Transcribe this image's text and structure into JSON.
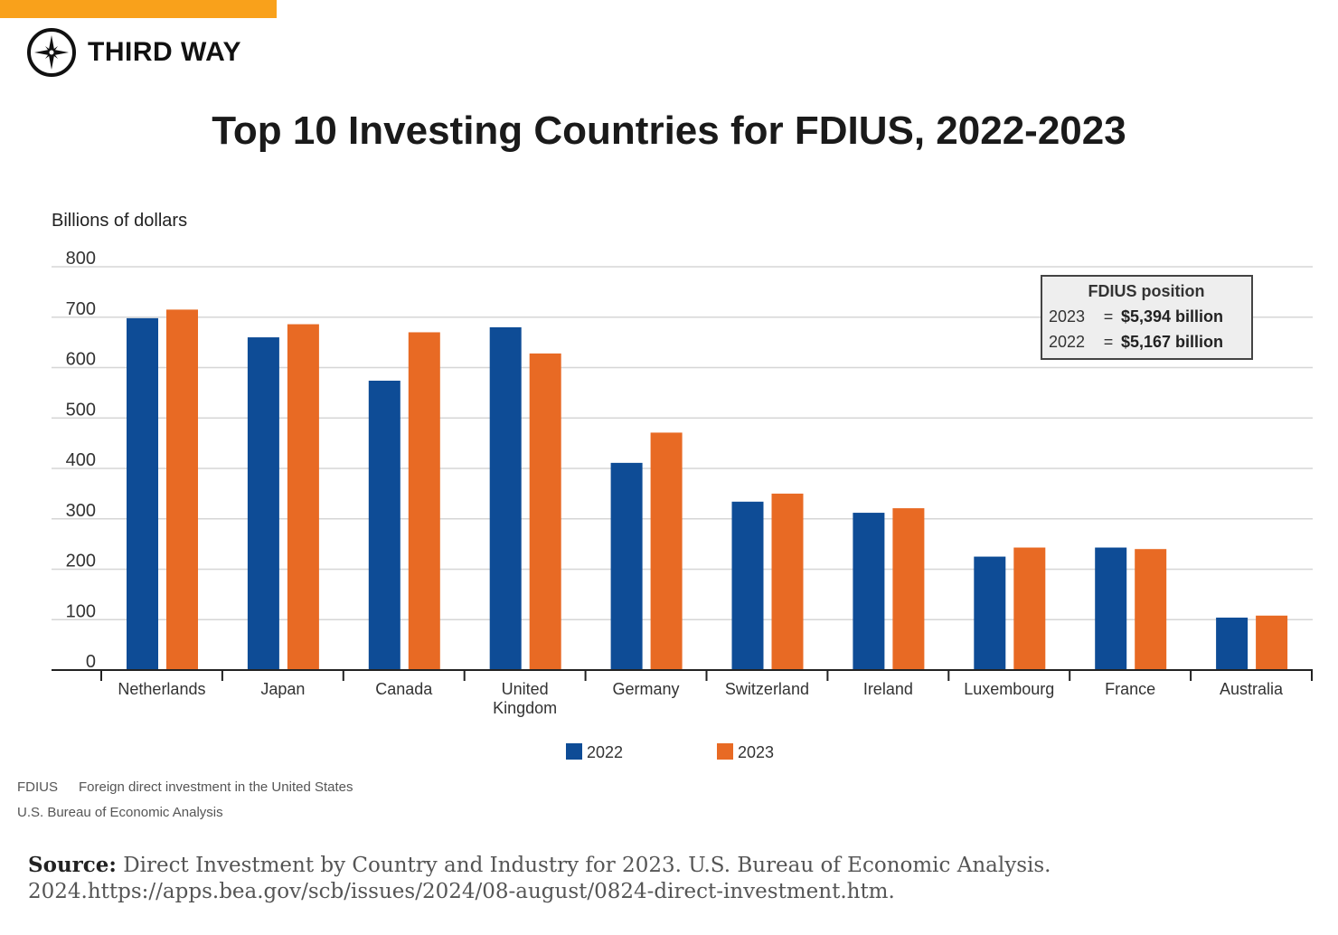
{
  "brand": {
    "name": "THIRD WAY",
    "accent_color": "#F9A11B",
    "icon": "compass-icon"
  },
  "chart_data": {
    "type": "bar",
    "title": "Top 10 Investing Countries for FDIUS, 2022-2023",
    "ylabel": "Billions of dollars",
    "xlabel": "",
    "ylim": [
      0,
      800
    ],
    "yticks": [
      0,
      100,
      200,
      300,
      400,
      500,
      600,
      700,
      800
    ],
    "grid": true,
    "categories": [
      "Netherlands",
      "Japan",
      "Canada",
      "United Kingdom",
      "Germany",
      "Switzerland",
      "Ireland",
      "Luxembourg",
      "France",
      "Australia"
    ],
    "series": [
      {
        "name": "2022",
        "color": "#0E4C96",
        "values": [
          698,
          660,
          574,
          680,
          411,
          334,
          312,
          225,
          243,
          104
        ]
      },
      {
        "name": "2023",
        "color": "#E86A24",
        "values": [
          715,
          686,
          670,
          628,
          471,
          350,
          321,
          243,
          240,
          108
        ]
      }
    ],
    "legend_position": "bottom-center",
    "annotation": {
      "title": "FDIUS position",
      "rows": [
        {
          "year": "2023",
          "eq": "=",
          "value": "$5,394 billion"
        },
        {
          "year": "2022",
          "eq": "=",
          "value": "$5,167 billion"
        }
      ]
    }
  },
  "notes": {
    "abbr": "FDIUS",
    "abbr_def": "Foreign direct investment in the United States",
    "agency": "U.S. Bureau of Economic Analysis"
  },
  "source": {
    "label": "Source:",
    "text": "Direct Investment by Country and Industry for 2023. U.S. Bureau of Economic Analysis. 2024.https://apps.bea.gov/scb/issues/2024/08-august/0824-direct-investment.htm."
  }
}
